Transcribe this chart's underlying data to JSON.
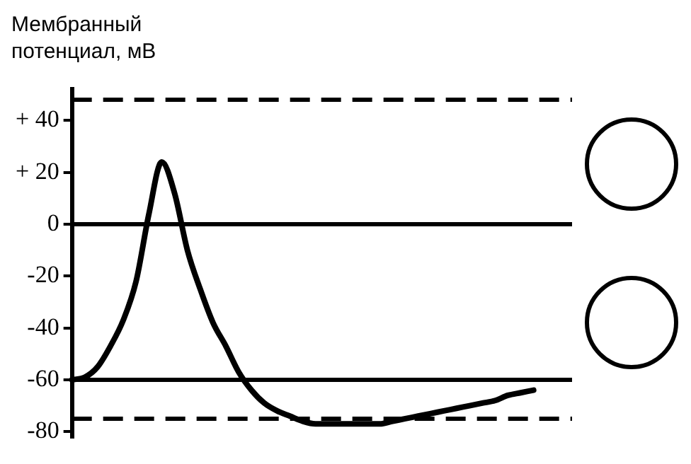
{
  "chart_data": {
    "type": "line",
    "ylabel": "Мембранный потенциал, мВ",
    "categories": [
      null,
      null,
      null,
      null,
      null,
      null,
      null,
      null,
      null,
      null,
      null,
      null,
      null,
      null,
      null,
      null,
      null,
      null,
      null,
      null,
      null,
      null,
      null,
      null,
      null,
      null,
      null,
      null,
      null,
      null,
      null,
      null,
      null,
      null,
      null,
      null,
      null,
      null,
      null,
      null
    ],
    "series": [
      {
        "color": "#000000",
        "values": [
          -60,
          -59,
          -55,
          -47,
          -37,
          -22,
          4,
          24,
          12,
          -10,
          -25,
          -38,
          -47,
          -57,
          -64,
          -69,
          -72,
          -74,
          -76,
          -77,
          -77,
          -77,
          -77,
          -77,
          -77,
          -76,
          -75,
          -74,
          -73,
          -72,
          -71,
          -70,
          -69,
          -68,
          -66,
          -65,
          -64,
          null,
          null,
          null
        ]
      }
    ],
    "ylim": [
      -82,
      52
    ],
    "yticks": [
      {
        "value": 40,
        "label": "+ 40"
      },
      {
        "value": 20,
        "label": "+ 20"
      },
      0,
      -20,
      -40,
      -60,
      -80
    ],
    "ref_lines": [
      {
        "axis": "y",
        "value": 0,
        "color": "#000000",
        "line_style": "solid"
      },
      {
        "axis": "y",
        "value": -60,
        "color": "#000000",
        "line_style": "solid"
      },
      {
        "axis": "y",
        "value": 48,
        "color": "#000000",
        "line_style": "dashed"
      },
      {
        "axis": "y",
        "value": -75,
        "color": "#000000",
        "line_style": "dashed"
      }
    ],
    "tick_labels": "y",
    "grid": false,
    "legend": false,
    "marker": "none",
    "line_style": "solid"
  }
}
